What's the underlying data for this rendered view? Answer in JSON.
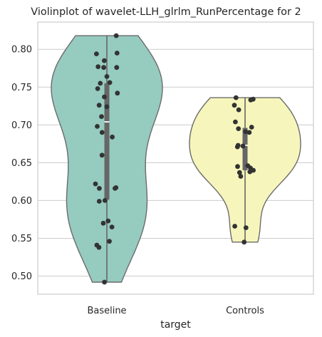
{
  "chart_data": {
    "type": "violin",
    "title": "Violinplot of wavelet-LLH_glrlm_RunPercentage for 2",
    "xlabel": "target",
    "ylabel": "",
    "ylim": [
      0.476,
      0.836
    ],
    "yticks": [
      "0.50",
      "0.55",
      "0.60",
      "0.65",
      "0.70",
      "0.75",
      "0.80"
    ],
    "grid": "horizontal",
    "categories": [
      "Baseline",
      "Controls"
    ],
    "colors": {
      "Baseline": "#96cbc0",
      "Controls": "#f6f6bc",
      "outline": "#6b6b6b",
      "box": "#666666",
      "points": "#333333",
      "grid": "#cccccc"
    },
    "series": [
      {
        "category": "Baseline",
        "range": [
          0.492,
          0.818
        ],
        "q1": 0.601,
        "median": 0.704,
        "q3": 0.755,
        "points": [
          0.818,
          0.795,
          0.794,
          0.785,
          0.776,
          0.777,
          0.776,
          0.764,
          0.756,
          0.755,
          0.748,
          0.742,
          0.737,
          0.726,
          0.724,
          0.711,
          0.698,
          0.684,
          0.69,
          0.66,
          0.622,
          0.617,
          0.616,
          0.616,
          0.6,
          0.599,
          0.573,
          0.57,
          0.565,
          0.546,
          0.541,
          0.538,
          0.492
        ]
      },
      {
        "category": "Controls",
        "range": [
          0.545,
          0.736
        ],
        "q1": 0.64,
        "median": 0.673,
        "q3": 0.696,
        "points": [
          0.736,
          0.734,
          0.733,
          0.726,
          0.72,
          0.704,
          0.697,
          0.695,
          0.691,
          0.69,
          0.673,
          0.672,
          0.671,
          0.646,
          0.645,
          0.643,
          0.64,
          0.637,
          0.638,
          0.632,
          0.566,
          0.564,
          0.545
        ]
      }
    ]
  }
}
